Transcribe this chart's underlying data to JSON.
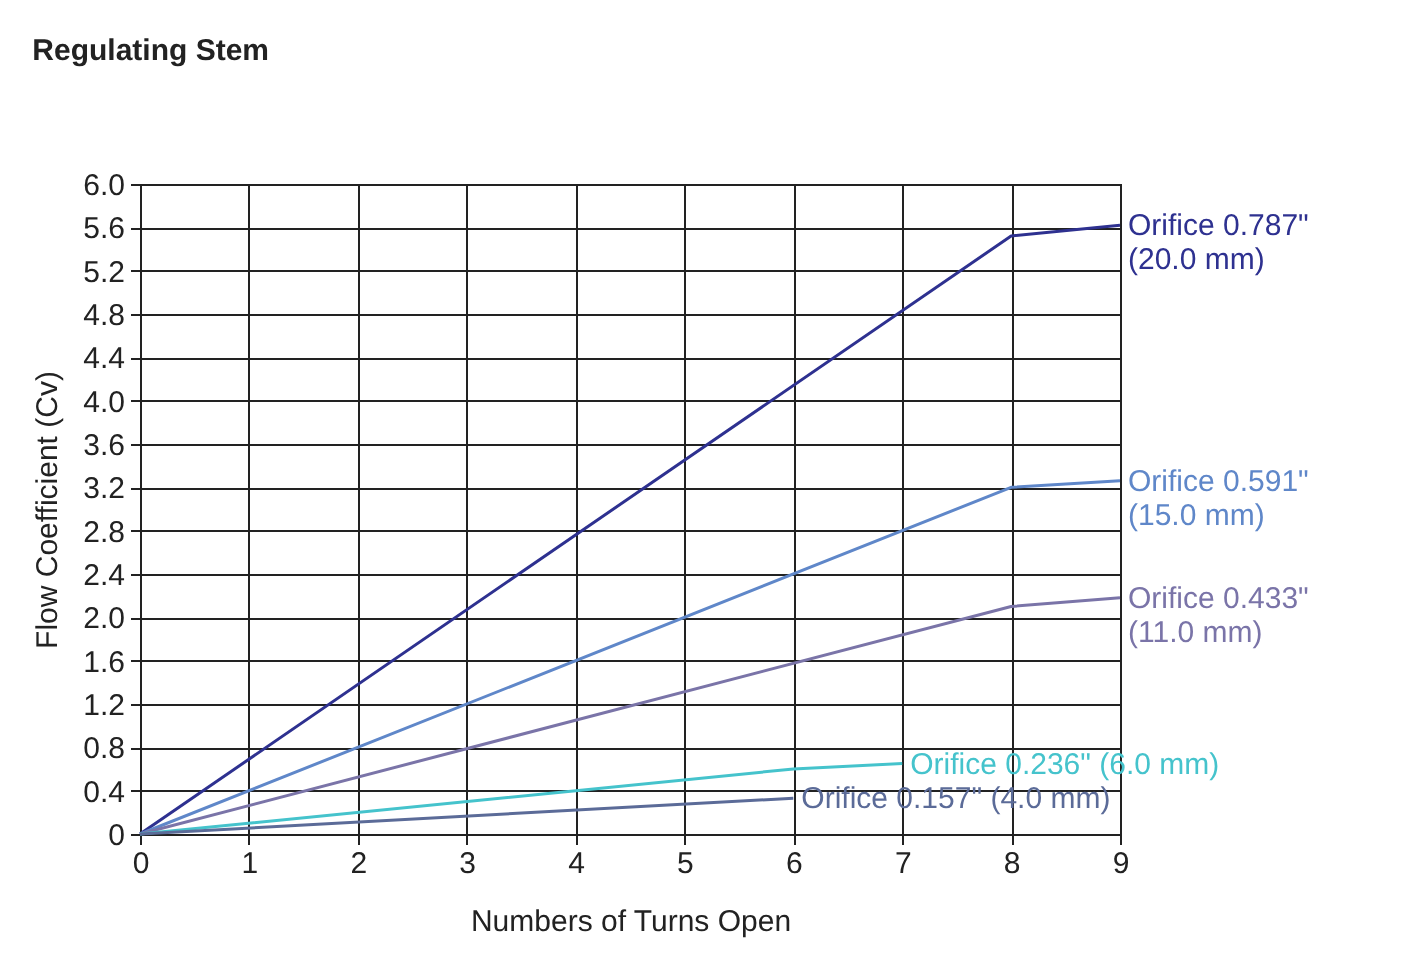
{
  "chart_data": {
    "type": "line",
    "title": "Regulating Stem",
    "xlabel": "Numbers of Turns Open",
    "ylabel": "Flow Coefficient (Cv)",
    "xlim": [
      0,
      9
    ],
    "xticks": [
      0,
      1,
      2,
      3,
      4,
      5,
      6,
      7,
      8,
      9
    ],
    "ylim": [
      0,
      6
    ],
    "yticks": [
      0,
      0.4,
      0.8,
      1.2,
      1.6,
      {
        "value": 2,
        "label": "2.0"
      },
      2.4,
      2.8,
      3.2,
      3.6,
      {
        "value": 4,
        "label": "4.0"
      },
      4.4,
      4.8,
      5.2,
      5.6,
      {
        "value": 6,
        "label": "6.0"
      }
    ],
    "grid": true,
    "legend": false,
    "marker": "none",
    "line_style": "solid",
    "series": [
      {
        "name": "Orifice 0.787\"\n(20.0 mm)",
        "color": "#2e3190",
        "x": [
          0,
          8,
          9
        ],
        "values": [
          0,
          5.52,
          5.62
        ]
      },
      {
        "name": "Orifice 0.591\"\n(15.0 mm)",
        "color": "#5f87c9",
        "x": [
          0,
          8,
          9
        ],
        "values": [
          0,
          3.2,
          3.26
        ]
      },
      {
        "name": "Orifice 0.433\"\n(11.0 mm)",
        "color": "#7a74a8",
        "x": [
          0,
          8,
          9
        ],
        "values": [
          0,
          2.1,
          2.18
        ]
      },
      {
        "name": "Orifice 0.236\" (6.0 mm)",
        "color": "#45c3cc",
        "x": [
          0,
          6,
          7
        ],
        "values": [
          0,
          0.6,
          0.65
        ]
      },
      {
        "name": "Orifice 0.157\" (4.0 mm)",
        "color": "#5b6b98",
        "x": [
          0,
          6
        ],
        "values": [
          0,
          0.33
        ]
      }
    ]
  }
}
